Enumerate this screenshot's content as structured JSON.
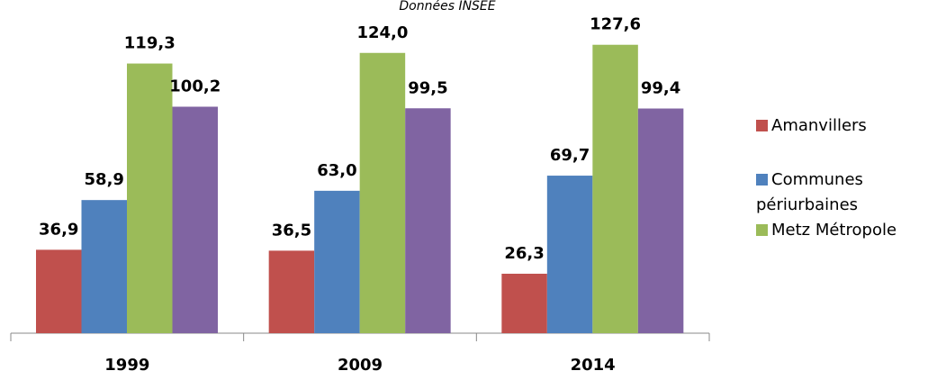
{
  "chart_data": {
    "type": "bar",
    "subtitle": "Données INSEE",
    "categories": [
      "1999",
      "2009",
      "2014"
    ],
    "series": [
      {
        "name": "Amanvillers",
        "color": "#c0504d",
        "values": [
          36.9,
          36.5,
          26.3
        ],
        "value_labels": [
          "36,9",
          "36,5",
          "26,3"
        ]
      },
      {
        "name": "Communes périurbaines",
        "color": "#4f81bd",
        "values": [
          58.9,
          63.0,
          69.7
        ],
        "value_labels": [
          "58,9",
          "63,0",
          "69,7"
        ]
      },
      {
        "name": "Metz Métropole",
        "color": "#9bbb59",
        "values": [
          119.3,
          124.0,
          127.6
        ],
        "value_labels": [
          "119,3",
          "124,0",
          "127,6"
        ]
      },
      {
        "color": "#8064a2",
        "values": [
          100.2,
          99.5,
          99.4
        ],
        "value_labels": [
          "100,2",
          "99,5",
          "99,4"
        ]
      }
    ]
  }
}
